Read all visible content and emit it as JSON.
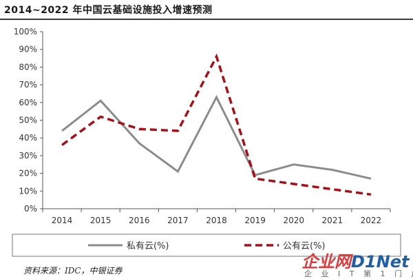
{
  "chart_data": {
    "type": "line",
    "title": "2014~2022 年中国云基础设施投入增速预测",
    "categories": [
      "2014",
      "2015",
      "2016",
      "2017",
      "2018",
      "2019",
      "2020",
      "2021",
      "2022"
    ],
    "y_ticks": [
      "0%",
      "10%",
      "20%",
      "30%",
      "40%",
      "50%",
      "60%",
      "70%",
      "80%",
      "90%",
      "100%"
    ],
    "ylim": [
      0,
      100
    ],
    "series": [
      {
        "name": "私有云(%)",
        "values": [
          44,
          61,
          37,
          21,
          63,
          19,
          25,
          22,
          17
        ],
        "color": "#8c8c8c",
        "style": "solid"
      },
      {
        "name": "公有云(%)",
        "values": [
          36,
          52,
          45,
          44,
          86,
          17,
          14,
          11,
          8
        ],
        "color": "#a80f18",
        "style": "dashed"
      }
    ],
    "legend_position": "bottom",
    "grid": false
  },
  "source": "资料来源：IDC，中银证券",
  "watermark": {
    "main_a": "企业网",
    "main_b": "D1Net",
    "sub": "企 业 I T 第 1 门 户"
  }
}
